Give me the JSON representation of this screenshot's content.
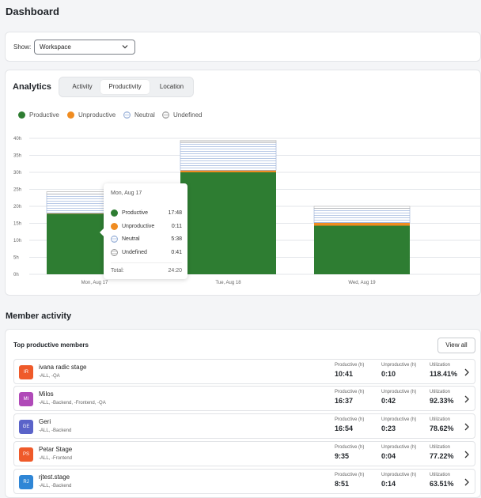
{
  "page": {
    "title": "Dashboard"
  },
  "filter": {
    "show_label": "Show:",
    "selected": "Workspace"
  },
  "analytics": {
    "title": "Analytics",
    "tabs": [
      {
        "label": "Activity",
        "active": false
      },
      {
        "label": "Productivity",
        "active": true
      },
      {
        "label": "Location",
        "active": false
      }
    ],
    "legend": [
      {
        "label": "Productive",
        "color": "#2e7d32"
      },
      {
        "label": "Unproductive",
        "color": "#f08c21"
      },
      {
        "label": "Neutral",
        "color": "#96aed6"
      },
      {
        "label": "Undefined",
        "color": "#9a9a9a"
      }
    ]
  },
  "chart_data": {
    "type": "bar",
    "stacked": true,
    "categories": [
      "Mon, Aug 17",
      "Tue, Aug 18",
      "Wed, Aug 19"
    ],
    "series": [
      {
        "name": "Productive",
        "values": [
          17.8,
          30.0,
          14.3
        ],
        "color": "#2e7d32"
      },
      {
        "name": "Unproductive",
        "values": [
          0.18,
          0.6,
          0.9
        ],
        "color": "#f08c21"
      },
      {
        "name": "Neutral",
        "values": [
          5.63,
          8.2,
          4.2
        ],
        "color": "#dde6f4"
      },
      {
        "name": "Undefined",
        "values": [
          0.68,
          0.6,
          0.6
        ],
        "color": "#e2e2e2"
      }
    ],
    "ytick_labels": [
      "0h",
      "5h",
      "10h",
      "15h",
      "20h",
      "25h",
      "30h",
      "35h",
      "40h"
    ],
    "ylim": [
      0,
      40
    ],
    "grid": true,
    "legend": "top-left"
  },
  "tooltip": {
    "date": "Mon, Aug 17",
    "rows": [
      {
        "label": "Productive",
        "value": "17:48",
        "color": "#2e7d32"
      },
      {
        "label": "Unproductive",
        "value": "0:11",
        "color": "#f08c21"
      },
      {
        "label": "Neutral",
        "value": "5:38",
        "color": "striped"
      },
      {
        "label": "Undefined",
        "value": "0:41",
        "color": "striped-gray"
      }
    ],
    "total_label": "Total:",
    "total_value": "24:20"
  },
  "member_activity": {
    "title": "Member activity",
    "card_title": "Top productive members",
    "view_all": "View all",
    "col_productive": "Productive (h)",
    "col_unproductive": "Unproductive (h)",
    "col_utilization": "Utilization",
    "members": [
      {
        "initials": "IR",
        "avatar_color": "#ef5a2a",
        "name": "ivana radic stage",
        "tags": "-ALL, -QA",
        "productive": "10:41",
        "unproductive": "0:10",
        "utilization": "118.41%"
      },
      {
        "initials": "MI",
        "avatar_color": "#b04ab8",
        "name": "Milos",
        "tags": "-ALL, -Backend, -Frontend, -QA",
        "productive": "16:37",
        "unproductive": "0:42",
        "utilization": "92.33%"
      },
      {
        "initials": "GE",
        "avatar_color": "#5a63c9",
        "name": "Geri",
        "tags": "-ALL, -Backend",
        "productive": "16:54",
        "unproductive": "0:23",
        "utilization": "78.62%"
      },
      {
        "initials": "PS",
        "avatar_color": "#ef5a2a",
        "name": "Petar Stage",
        "tags": "-ALL, -Frontend",
        "productive": "9:35",
        "unproductive": "0:04",
        "utilization": "77.22%"
      },
      {
        "initials": "RJ",
        "avatar_color": "#2f86d6",
        "name": "rjtest.stage",
        "tags": "-ALL, -Backend",
        "productive": "8:51",
        "unproductive": "0:14",
        "utilization": "63.51%"
      }
    ]
  }
}
